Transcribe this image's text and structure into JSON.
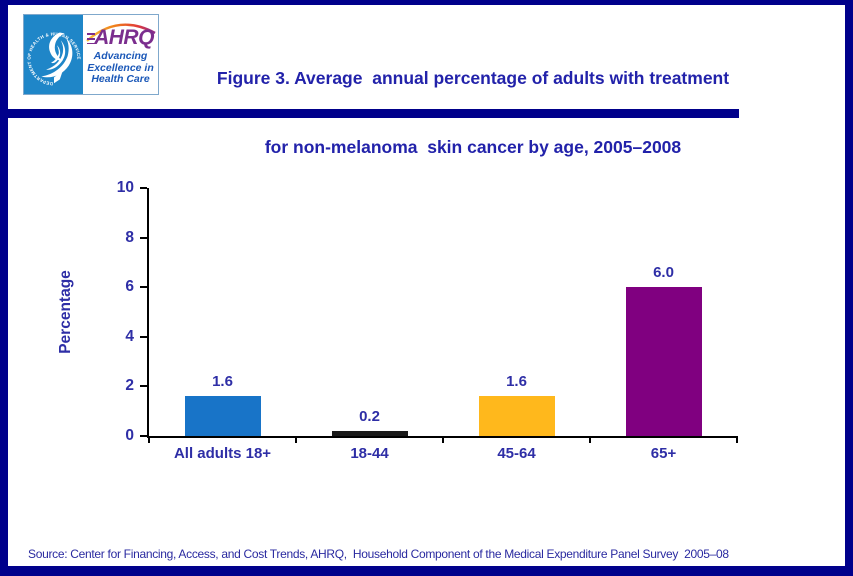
{
  "page": {
    "colors": {
      "border_navy": "#00008B",
      "title_blue": "#2222AA",
      "chart_text_blue": "#2E2EA6",
      "source_blue": "#2A2AA0",
      "hhs_panel_blue": "#1F86C8",
      "ahrq_purple": "#7B2E8E",
      "tagline_blue": "#1B58B8"
    }
  },
  "header": {
    "logo": {
      "hhs_circle_text": "DEPARTMENT OF HEALTH & HUMAN SERVICES • USA",
      "ahrq_acronym": "AHRQ",
      "tagline_line1": "Advancing",
      "tagline_line2": "Excellence in",
      "tagline_line3": "Health Care"
    },
    "title_line1": "Figure 3. Average  annual percentage of adults with treatment",
    "title_line2": "for non-melanoma  skin cancer by age, 2005–2008"
  },
  "chart_data": {
    "type": "bar",
    "title": "Figure 3. Average annual percentage of adults with treatment for non-melanoma skin cancer by age, 2005–2008",
    "categories": [
      "All adults 18+",
      "18-44",
      "45-64",
      "65+"
    ],
    "values": [
      1.6,
      0.2,
      1.6,
      6.0
    ],
    "value_labels": [
      "1.6",
      "0.2",
      "1.6",
      "6.0"
    ],
    "bar_colors": [
      "#1874C8",
      "#1A1A1A",
      "#FFB81C",
      "#800080"
    ],
    "xlabel": "",
    "ylabel": "Percentage",
    "ylim": [
      0,
      10
    ],
    "yticks": [
      0,
      2,
      4,
      6,
      8,
      10
    ],
    "grid": false,
    "legend": "none",
    "label_color": "#2E2EA6",
    "axis_color": "#000000"
  },
  "footer": {
    "source": "Source: Center for Financing, Access, and Cost Trends, AHRQ,  Household Component of the Medical Expenditure Panel Survey  2005–08"
  }
}
